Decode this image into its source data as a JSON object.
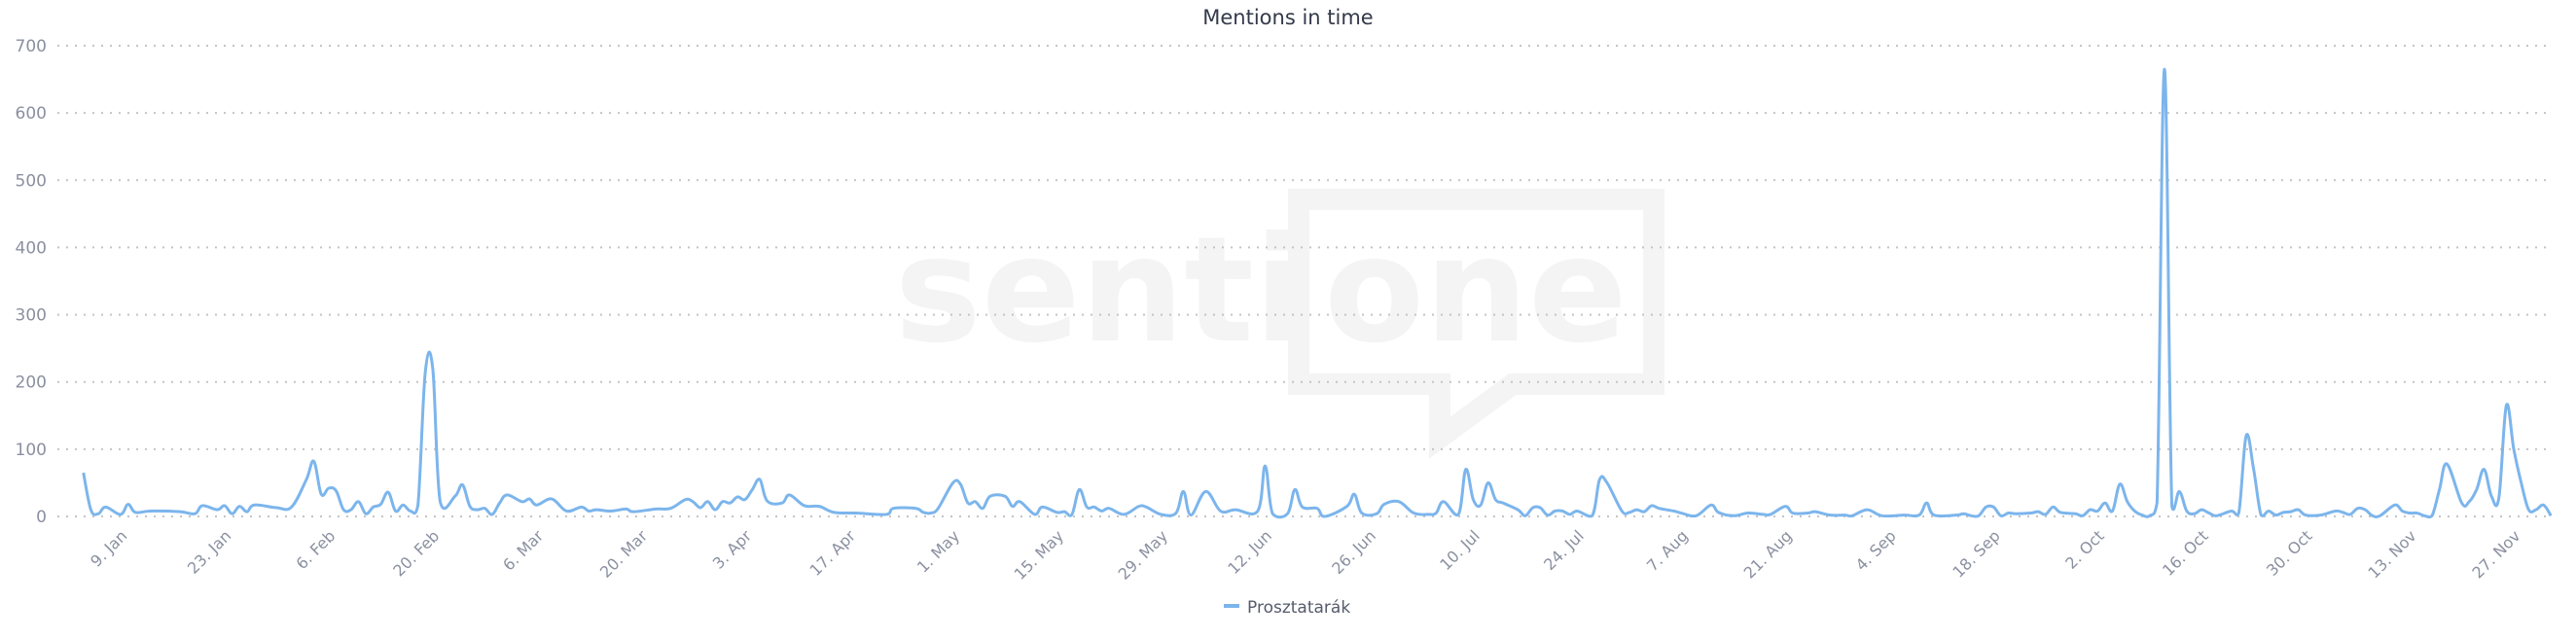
{
  "chart_data": {
    "type": "line",
    "title": "Mentions in time",
    "xlabel": "",
    "ylabel": "",
    "ylim": [
      0,
      700
    ],
    "yticks": [
      "0",
      "100",
      "200",
      "300",
      "400",
      "500",
      "600",
      "700"
    ],
    "xticks": [
      "9. Jan",
      "23. Jan",
      "6. Feb",
      "20. Feb",
      "6. Mar",
      "20. Mar",
      "3. Apr",
      "17. Apr",
      "1. May",
      "15. May",
      "29. May",
      "12. Jun",
      "26. Jun",
      "10. Jul",
      "24. Jul",
      "7. Aug",
      "21. Aug",
      "4. Sep",
      "18. Sep",
      "2. Oct",
      "16. Oct",
      "30. Oct",
      "13. Nov",
      "27. Nov"
    ],
    "grid": true,
    "grid_style": "dotted",
    "legend_position": "bottom",
    "watermark": "sentione",
    "series": [
      {
        "name": "Prosztatarák",
        "color": "#7cb5ec",
        "points": [
          [
            "3. Jan",
            65
          ],
          [
            "4. Jan",
            10
          ],
          [
            "5. Jan",
            4
          ],
          [
            "6. Jan",
            14
          ],
          [
            "8. Jan",
            3
          ],
          [
            "9. Jan",
            18
          ],
          [
            "10. Jan",
            6
          ],
          [
            "12. Jan",
            8
          ],
          [
            "16. Jan",
            7
          ],
          [
            "18. Jan",
            4
          ],
          [
            "19. Jan",
            16
          ],
          [
            "21. Jan",
            10
          ],
          [
            "22. Jan",
            16
          ],
          [
            "23. Jan",
            4
          ],
          [
            "24. Jan",
            15
          ],
          [
            "25. Jan",
            7
          ],
          [
            "26. Jan",
            17
          ],
          [
            "29. Jan",
            13
          ],
          [
            "31. Jan",
            14
          ],
          [
            "2. Feb",
            55
          ],
          [
            "3. Feb",
            82
          ],
          [
            "4. Feb",
            33
          ],
          [
            "5. Feb",
            42
          ],
          [
            "6. Feb",
            38
          ],
          [
            "7. Feb",
            10
          ],
          [
            "8. Feb",
            10
          ],
          [
            "9. Feb",
            22
          ],
          [
            "10. Feb",
            4
          ],
          [
            "11. Feb",
            14
          ],
          [
            "12. Feb",
            18
          ],
          [
            "13. Feb",
            36
          ],
          [
            "14. Feb",
            8
          ],
          [
            "15. Feb",
            17
          ],
          [
            "16. Feb",
            8
          ],
          [
            "17. Feb",
            16
          ],
          [
            "18. Feb",
            215
          ],
          [
            "19. Feb",
            220
          ],
          [
            "20. Feb",
            22
          ],
          [
            "22. Feb",
            30
          ],
          [
            "23. Feb",
            47
          ],
          [
            "24. Feb",
            15
          ],
          [
            "25. Feb",
            10
          ],
          [
            "26. Feb",
            12
          ],
          [
            "27. Feb",
            3
          ],
          [
            "28. Feb",
            20
          ],
          [
            "1. Mar",
            32
          ],
          [
            "3. Mar",
            22
          ],
          [
            "4. Mar",
            26
          ],
          [
            "5. Mar",
            17
          ],
          [
            "7. Mar",
            26
          ],
          [
            "9. Mar",
            8
          ],
          [
            "11. Mar",
            14
          ],
          [
            "12. Mar",
            8
          ],
          [
            "13. Mar",
            10
          ],
          [
            "15. Mar",
            8
          ],
          [
            "17. Mar",
            11
          ],
          [
            "18. Mar",
            7
          ],
          [
            "21. Mar",
            11
          ],
          [
            "23. Mar",
            12
          ],
          [
            "25. Mar",
            25
          ],
          [
            "26. Mar",
            22
          ],
          [
            "27. Mar",
            13
          ],
          [
            "28. Mar",
            22
          ],
          [
            "29. Mar",
            10
          ],
          [
            "30. Mar",
            22
          ],
          [
            "31. Mar",
            20
          ],
          [
            "1. Apr",
            29
          ],
          [
            "2. Apr",
            25
          ],
          [
            "3. Apr",
            40
          ],
          [
            "4. Apr",
            55
          ],
          [
            "5. Apr",
            23
          ],
          [
            "7. Apr",
            20
          ],
          [
            "8. Apr",
            32
          ],
          [
            "10. Apr",
            16
          ],
          [
            "12. Apr",
            15
          ],
          [
            "14. Apr",
            6
          ],
          [
            "17. Apr",
            5
          ],
          [
            "21. Apr",
            3
          ],
          [
            "22. Apr",
            12
          ],
          [
            "25. Apr",
            12
          ],
          [
            "26. Apr",
            6
          ],
          [
            "27. Apr",
            5
          ],
          [
            "28. Apr",
            12
          ],
          [
            "30. Apr",
            50
          ],
          [
            "1. May",
            48
          ],
          [
            "2. May",
            20
          ],
          [
            "3. May",
            22
          ],
          [
            "4. May",
            12
          ],
          [
            "5. May",
            30
          ],
          [
            "7. May",
            30
          ],
          [
            "8. May",
            15
          ],
          [
            "9. May",
            22
          ],
          [
            "11. May",
            3
          ],
          [
            "12. May",
            14
          ],
          [
            "14. May",
            6
          ],
          [
            "15. May",
            7
          ],
          [
            "16. May",
            3
          ],
          [
            "17. May",
            40
          ],
          [
            "18. May",
            14
          ],
          [
            "19. May",
            14
          ],
          [
            "20. May",
            8
          ],
          [
            "21. May",
            12
          ],
          [
            "23. May",
            3
          ],
          [
            "25. May",
            15
          ],
          [
            "26. May",
            14
          ],
          [
            "28. May",
            3
          ],
          [
            "30. May",
            5
          ],
          [
            "31. May",
            37
          ],
          [
            "1. Jun",
            2
          ],
          [
            "3. Jun",
            37
          ],
          [
            "5. Jun",
            8
          ],
          [
            "7. Jun",
            10
          ],
          [
            "10. Jun",
            8
          ],
          [
            "11. Jun",
            75
          ],
          [
            "12. Jun",
            4
          ],
          [
            "14. Jun",
            4
          ],
          [
            "15. Jun",
            40
          ],
          [
            "16. Jun",
            14
          ],
          [
            "18. Jun",
            12
          ],
          [
            "19. Jun",
            0
          ],
          [
            "22. Jun",
            15
          ],
          [
            "23. Jun",
            33
          ],
          [
            "24. Jun",
            5
          ],
          [
            "26. Jun",
            4
          ],
          [
            "27. Jun",
            18
          ],
          [
            "29. Jun",
            22
          ],
          [
            "1. Jul",
            5
          ],
          [
            "3. Jul",
            3
          ],
          [
            "4. Jul",
            5
          ],
          [
            "5. Jul",
            22
          ],
          [
            "7. Jul",
            3
          ],
          [
            "8. Jul",
            70
          ],
          [
            "9. Jul",
            25
          ],
          [
            "10. Jul",
            17
          ],
          [
            "11. Jul",
            50
          ],
          [
            "12. Jul",
            25
          ],
          [
            "13. Jul",
            20
          ],
          [
            "15. Jul",
            10
          ],
          [
            "16. Jul",
            1
          ],
          [
            "17. Jul",
            13
          ],
          [
            "18. Jul",
            13
          ],
          [
            "19. Jul",
            2
          ],
          [
            "20. Jul",
            8
          ],
          [
            "21. Jul",
            8
          ],
          [
            "22. Jul",
            3
          ],
          [
            "23. Jul",
            8
          ],
          [
            "25. Jul",
            1
          ],
          [
            "26. Jul",
            55
          ],
          [
            "27. Jul",
            50
          ],
          [
            "29. Jul",
            8
          ],
          [
            "30. Jul",
            6
          ],
          [
            "31. Jul",
            10
          ],
          [
            "1. Aug",
            7
          ],
          [
            "2. Aug",
            16
          ],
          [
            "3. Aug",
            12
          ],
          [
            "5. Aug",
            8
          ],
          [
            "6. Aug",
            5
          ],
          [
            "8. Aug",
            1
          ],
          [
            "10. Aug",
            17
          ],
          [
            "11. Aug",
            6
          ],
          [
            "13. Aug",
            1
          ],
          [
            "15. Aug",
            5
          ],
          [
            "17. Aug",
            3
          ],
          [
            "18. Aug",
            3
          ],
          [
            "20. Aug",
            15
          ],
          [
            "21. Aug",
            5
          ],
          [
            "23. Aug",
            5
          ],
          [
            "24. Aug",
            7
          ],
          [
            "26. Aug",
            2
          ],
          [
            "28. Aug",
            2
          ],
          [
            "29. Aug",
            1
          ],
          [
            "31. Aug",
            10
          ],
          [
            "2. Sep",
            1
          ],
          [
            "5. Sep",
            2
          ],
          [
            "7. Sep",
            2
          ],
          [
            "8. Sep",
            20
          ],
          [
            "9. Sep",
            2
          ],
          [
            "12. Sep",
            2
          ],
          [
            "13. Sep",
            4
          ],
          [
            "14. Sep",
            1
          ],
          [
            "15. Sep",
            1
          ],
          [
            "16. Sep",
            14
          ],
          [
            "17. Sep",
            14
          ],
          [
            "18. Sep",
            1
          ],
          [
            "19. Sep",
            5
          ],
          [
            "20. Sep",
            4
          ],
          [
            "22. Sep",
            5
          ],
          [
            "23. Sep",
            7
          ],
          [
            "24. Sep",
            3
          ],
          [
            "25. Sep",
            14
          ],
          [
            "26. Sep",
            6
          ],
          [
            "28. Sep",
            4
          ],
          [
            "29. Sep",
            1
          ],
          [
            "30. Sep",
            10
          ],
          [
            "1. Oct",
            8
          ],
          [
            "2. Oct",
            20
          ],
          [
            "3. Oct",
            8
          ],
          [
            "4. Oct",
            48
          ],
          [
            "5. Oct",
            22
          ],
          [
            "6. Oct",
            8
          ],
          [
            "7. Oct",
            2
          ],
          [
            "8. Oct",
            1
          ],
          [
            "9. Oct",
            20
          ],
          [
            "10. Oct",
            665
          ],
          [
            "11. Oct",
            15
          ],
          [
            "12. Oct",
            37
          ],
          [
            "13. Oct",
            8
          ],
          [
            "14. Oct",
            4
          ],
          [
            "15. Oct",
            10
          ],
          [
            "16. Oct",
            5
          ],
          [
            "17. Oct",
            1
          ],
          [
            "19. Oct",
            8
          ],
          [
            "20. Oct",
            5
          ],
          [
            "21. Oct",
            120
          ],
          [
            "22. Oct",
            70
          ],
          [
            "23. Oct",
            2
          ],
          [
            "24. Oct",
            8
          ],
          [
            "25. Oct",
            2
          ],
          [
            "26. Oct",
            6
          ],
          [
            "27. Oct",
            7
          ],
          [
            "28. Oct",
            10
          ],
          [
            "29. Oct",
            2
          ],
          [
            "31. Oct",
            2
          ],
          [
            "2. Nov",
            8
          ],
          [
            "3. Nov",
            6
          ],
          [
            "4. Nov",
            3
          ],
          [
            "5. Nov",
            12
          ],
          [
            "6. Nov",
            10
          ],
          [
            "7. Nov",
            1
          ],
          [
            "8. Nov",
            1
          ],
          [
            "10. Nov",
            17
          ],
          [
            "11. Nov",
            8
          ],
          [
            "12. Nov",
            5
          ],
          [
            "13. Nov",
            5
          ],
          [
            "14. Nov",
            1
          ],
          [
            "15. Nov",
            1
          ],
          [
            "16. Nov",
            40
          ],
          [
            "17. Nov",
            78
          ],
          [
            "19. Nov",
            20
          ],
          [
            "20. Nov",
            22
          ],
          [
            "21. Nov",
            40
          ],
          [
            "22. Nov",
            70
          ],
          [
            "23. Nov",
            30
          ],
          [
            "24. Nov",
            28
          ],
          [
            "25. Nov",
            165
          ],
          [
            "26. Nov",
            100
          ],
          [
            "27. Nov",
            50
          ],
          [
            "28. Nov",
            10
          ],
          [
            "29. Nov",
            10
          ],
          [
            "30. Nov",
            17
          ],
          [
            "1. Dec",
            1
          ]
        ]
      }
    ]
  }
}
